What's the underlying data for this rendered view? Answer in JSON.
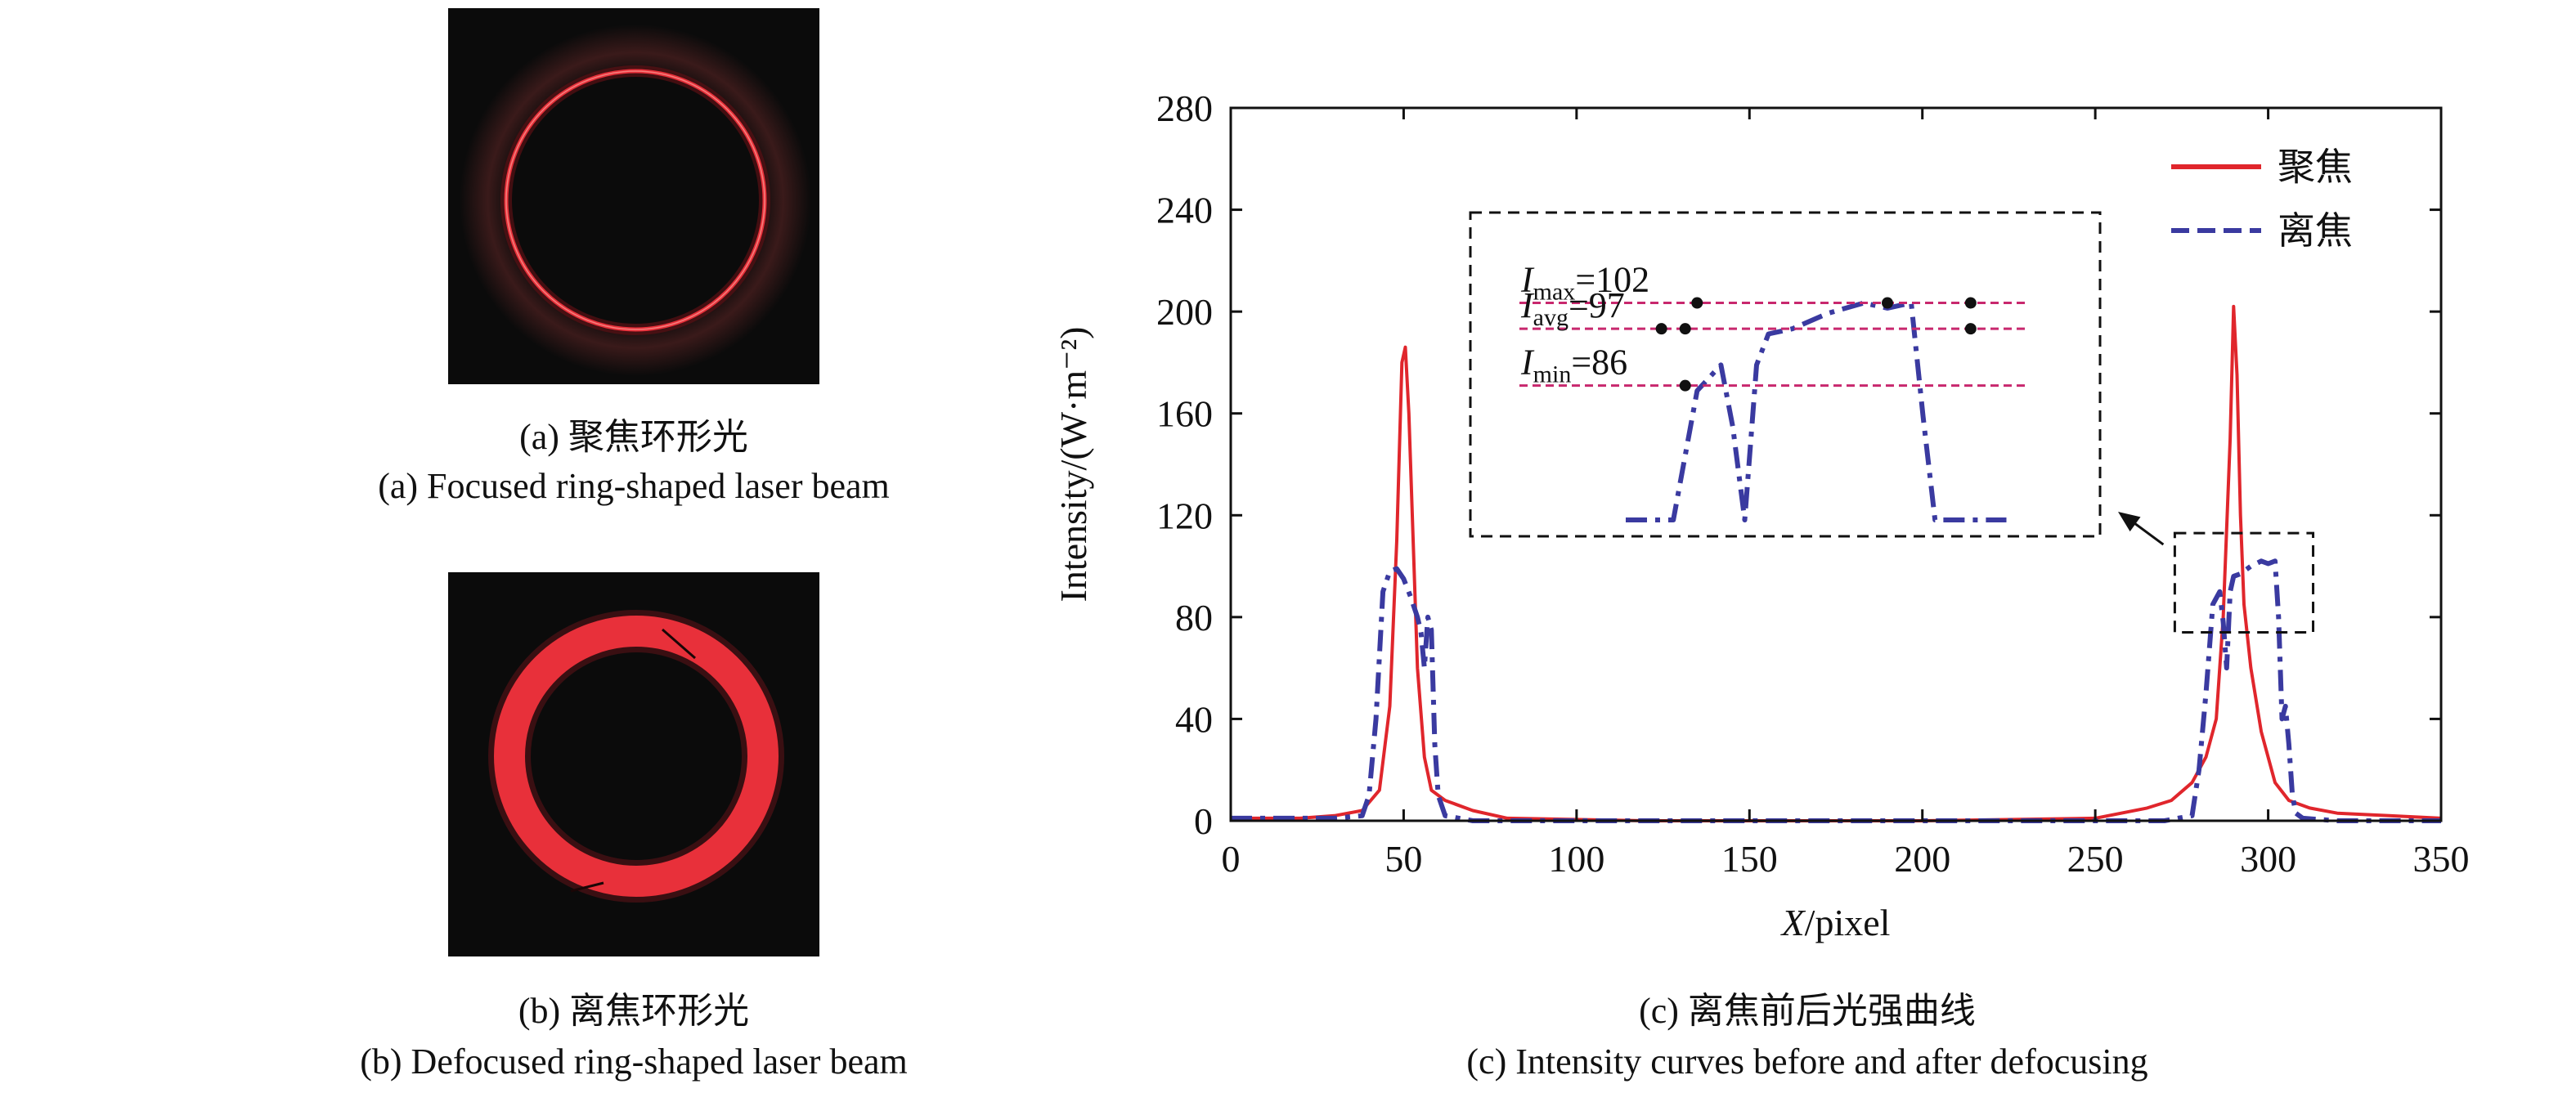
{
  "panel_a": {
    "caption_cn": "(a) 聚焦环形光",
    "caption_en": "(a) Focused ring-shaped laser beam"
  },
  "panel_b": {
    "caption_cn": "(b) 离焦环形光",
    "caption_en": "(b) Defocused ring-shaped laser beam"
  },
  "panel_c": {
    "caption_cn": "(c) 离焦前后光强曲线",
    "caption_en": "(c) Intensity curves before and after defocusing"
  },
  "colors": {
    "focused": "#e0262c",
    "defocused": "#3a3aa0",
    "ring": "#e8303a",
    "annot_line": "#c8286e"
  },
  "chart_data": {
    "type": "line",
    "title": "",
    "xlabel_italic": "X",
    "xlabel_rest": "/pixel",
    "ylabel": "Intensity/(W·m⁻²)",
    "xlim": [
      0,
      350
    ],
    "ylim": [
      0,
      280
    ],
    "x_ticks": [
      0,
      50,
      100,
      150,
      200,
      250,
      300,
      350
    ],
    "y_ticks": [
      0,
      40,
      80,
      120,
      160,
      200,
      240,
      280
    ],
    "legend_position": "top-right",
    "grid": false,
    "series": [
      {
        "name": "聚焦",
        "style": "solid",
        "x": [
          0,
          20,
          30,
          38,
          43,
          46,
          48,
          49.5,
          50.5,
          51.5,
          52.5,
          54,
          56,
          58,
          62,
          70,
          80,
          120,
          200,
          250,
          265,
          272,
          278,
          282,
          285,
          287,
          289,
          290,
          291,
          292,
          293,
          295,
          298,
          302,
          306,
          312,
          320,
          335,
          350
        ],
        "y": [
          1,
          1,
          2,
          4,
          12,
          45,
          110,
          180,
          186,
          160,
          120,
          60,
          25,
          12,
          8,
          4,
          1,
          0,
          0,
          1,
          5,
          8,
          15,
          25,
          40,
          80,
          150,
          202,
          175,
          120,
          85,
          60,
          35,
          15,
          8,
          5,
          3,
          2,
          1
        ]
      },
      {
        "name": "离焦",
        "style": "dashed",
        "x": [
          0,
          30,
          38,
          40,
          42,
          44,
          46,
          48,
          50,
          52,
          54,
          55,
          56,
          57,
          58,
          59,
          60,
          62,
          70,
          100,
          200,
          250,
          270,
          278,
          280,
          282,
          284,
          286,
          287,
          288,
          289,
          290,
          292,
          295,
          298,
          300,
          302,
          303,
          304,
          305,
          306,
          307,
          308,
          310,
          320,
          350
        ],
        "y": [
          1,
          1,
          2,
          10,
          40,
          90,
          98,
          99,
          95,
          88,
          80,
          74,
          60,
          80,
          75,
          30,
          10,
          2,
          0,
          0,
          0,
          0,
          0,
          2,
          20,
          50,
          85,
          90,
          78,
          60,
          90,
          96,
          97,
          100,
          102,
          101,
          102,
          80,
          40,
          45,
          30,
          10,
          3,
          1,
          0,
          0
        ]
      }
    ],
    "annotations": {
      "imax_base": "I",
      "imax_sub": "max",
      "imax_val": "=102",
      "iavg_base": "I",
      "iavg_sub": "avg",
      "iavg_val": "=97",
      "imin_base": "I",
      "imin_sub": "min",
      "imin_val": "=86",
      "small_box_x": [
        273,
        313
      ],
      "small_box_y": [
        74,
        113
      ]
    }
  }
}
